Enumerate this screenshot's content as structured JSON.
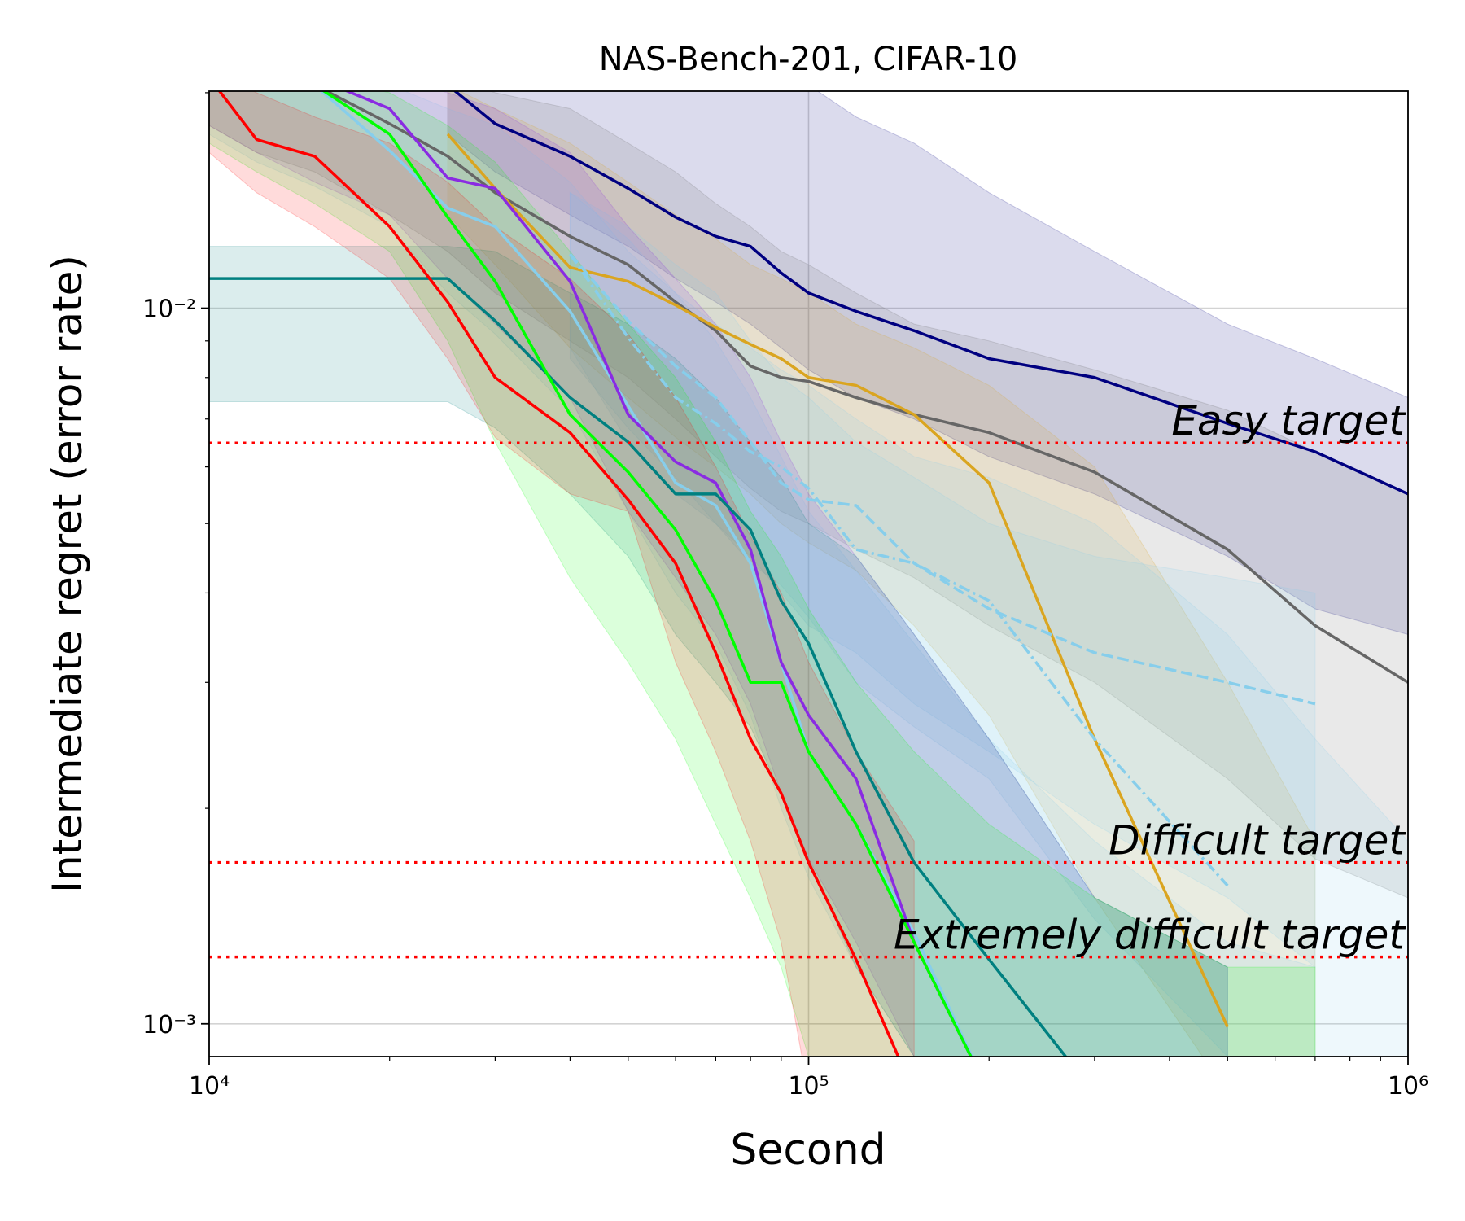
{
  "chart_data": {
    "type": "line",
    "title": "NAS-Bench-201, CIFAR-10",
    "xlabel": "Second",
    "ylabel": "Intermediate regret (error rate)",
    "xscale": "log",
    "yscale": "log",
    "grid": true,
    "xlim": [
      10000,
      1000000
    ],
    "ylim": [
      0.0009,
      0.0201
    ],
    "xticks": [
      {
        "value": 10000,
        "label": "10⁴"
      },
      {
        "value": 100000,
        "label": "10⁵"
      },
      {
        "value": 1000000,
        "label": "10⁶"
      }
    ],
    "yticks": [
      {
        "value": 0.001,
        "label": "10⁻³"
      },
      {
        "value": 0.01,
        "label": "10⁻²"
      }
    ],
    "xminorticks": [
      20000,
      30000,
      40000,
      50000,
      60000,
      70000,
      80000,
      90000,
      200000,
      300000,
      400000,
      500000,
      600000,
      700000,
      800000,
      900000
    ],
    "yminorticks": [
      0.002,
      0.003,
      0.004,
      0.005,
      0.006,
      0.007,
      0.008,
      0.009,
      0.02
    ],
    "hline_color": "#ff0000",
    "hlines": [
      {
        "y": 0.00648,
        "label": "Easy target"
      },
      {
        "y": 0.00168,
        "label": "Difficult target"
      },
      {
        "y": 0.00124,
        "label": "Extremely difficult target"
      }
    ],
    "x": [
      10000,
      12000,
      15000,
      20000,
      25000,
      30000,
      40000,
      50000,
      60000,
      70000,
      80000,
      90000,
      100000,
      120000,
      150000,
      200000,
      300000,
      500000,
      700000,
      1000000
    ],
    "series": [
      {
        "color": "#000080",
        "linestyle": "-",
        "values": [
          null,
          null,
          null,
          null,
          0.0205,
          0.0181,
          0.0163,
          0.0147,
          0.0134,
          0.0126,
          0.0122,
          0.0112,
          0.0105,
          0.0099,
          0.0093,
          0.0085,
          0.008,
          0.0069,
          0.0063,
          0.0055
        ],
        "upper": [
          null,
          null,
          null,
          null,
          0.0205,
          0.0205,
          0.0205,
          0.0205,
          0.0205,
          0.0205,
          0.0205,
          0.0205,
          0.0205,
          0.0185,
          0.017,
          0.0145,
          0.012,
          0.0095,
          0.0085,
          0.0075
        ],
        "lower": [
          null,
          null,
          null,
          null,
          0.0175,
          0.0155,
          0.0135,
          0.0122,
          0.011,
          0.0102,
          0.0095,
          0.0088,
          0.0082,
          0.0075,
          0.007,
          0.0062,
          0.0055,
          0.0045,
          0.0038,
          0.0035
        ]
      },
      {
        "color": "#666666",
        "linestyle": "-",
        "values": [
          0.023,
          0.021,
          0.0205,
          0.0181,
          0.0163,
          0.0145,
          0.0126,
          0.0115,
          0.0102,
          0.0093,
          0.0083,
          0.008,
          0.0079,
          0.0075,
          0.0071,
          0.0067,
          0.0059,
          0.0046,
          0.0036,
          0.003
        ],
        "upper": [
          0.022,
          0.022,
          0.022,
          0.0215,
          0.021,
          0.02,
          0.019,
          0.017,
          0.0155,
          0.014,
          0.013,
          0.012,
          0.0115,
          0.0105,
          0.0095,
          0.009,
          0.0082,
          0.0072,
          0.0063,
          0.0055
        ],
        "lower": [
          0.018,
          0.0165,
          0.0155,
          0.0135,
          0.012,
          0.0105,
          0.009,
          0.008,
          0.007,
          0.0062,
          0.0056,
          0.0052,
          0.005,
          0.0046,
          0.0042,
          0.0036,
          0.003,
          0.0022,
          0.0017,
          0.0015
        ]
      },
      {
        "color": "#daa520",
        "linestyle": "-",
        "values": [
          null,
          null,
          null,
          null,
          0.0175,
          0.0147,
          0.0114,
          0.0109,
          0.0101,
          0.0094,
          0.0089,
          0.0085,
          0.008,
          0.0078,
          0.0071,
          0.0057,
          0.0025,
          0.00099,
          null,
          null
        ],
        "upper": [
          null,
          null,
          null,
          null,
          0.0205,
          0.019,
          0.017,
          0.015,
          0.0135,
          0.0125,
          0.0115,
          0.011,
          0.0105,
          0.0095,
          0.0088,
          0.0078,
          0.006,
          0.003,
          0.0018,
          null
        ],
        "lower": [
          null,
          null,
          null,
          null,
          0.0135,
          0.0115,
          0.0088,
          0.0075,
          0.0066,
          0.006,
          0.0055,
          0.005,
          0.0047,
          0.0043,
          0.0036,
          0.0027,
          0.0015,
          0.0008,
          0.0008,
          null
        ]
      },
      {
        "color": "#87ceeb",
        "linestyle": "--",
        "values": [
          null,
          null,
          null,
          null,
          null,
          null,
          0.0119,
          0.0096,
          0.0083,
          0.0075,
          0.0065,
          0.0057,
          0.0054,
          0.0053,
          0.0044,
          0.0038,
          0.0033,
          0.003,
          0.0028,
          null
        ],
        "upper": [
          null,
          null,
          null,
          null,
          null,
          null,
          0.0145,
          0.013,
          0.0115,
          0.0105,
          0.009,
          0.008,
          0.0075,
          0.0065,
          0.0058,
          0.005,
          0.0045,
          0.0042,
          0.004,
          null
        ],
        "lower": [
          null,
          null,
          null,
          null,
          null,
          null,
          0.0085,
          0.0068,
          0.0058,
          0.005,
          0.0045,
          0.004,
          0.0036,
          0.0033,
          0.0028,
          0.0024,
          0.0019,
          0.0015,
          0.0012,
          null
        ]
      },
      {
        "color": "#87ceeb",
        "linestyle": "-.",
        "values": [
          null,
          null,
          null,
          null,
          null,
          null,
          0.0119,
          0.0091,
          0.0075,
          0.0069,
          0.0063,
          0.006,
          0.0056,
          0.0046,
          0.0044,
          0.0039,
          0.0025,
          0.00156,
          null,
          null
        ],
        "upper": [
          null,
          null,
          null,
          null,
          null,
          null,
          0.0145,
          0.0125,
          0.0105,
          0.0095,
          0.0088,
          0.0082,
          0.0078,
          0.007,
          0.0062,
          0.0058,
          0.005,
          0.0035,
          0.0025,
          0.0018
        ],
        "lower": [
          null,
          null,
          null,
          null,
          null,
          null,
          0.0088,
          0.0065,
          0.0055,
          0.005,
          0.0044,
          0.0041,
          0.0037,
          0.003,
          0.0026,
          0.0022,
          0.0014,
          0.0009,
          0.0008,
          0.0008
        ]
      },
      {
        "color": "#87ceeb",
        "linestyle": "-",
        "values": [
          0.022,
          0.021,
          0.0205,
          0.0166,
          0.0138,
          0.013,
          0.0099,
          0.0073,
          0.0057,
          0.0053,
          0.0044,
          0.0032,
          0.0024,
          0.0019,
          0.00134,
          0.0008,
          null,
          null,
          null,
          null
        ],
        "upper": [
          0.0225,
          0.022,
          0.0215,
          0.0205,
          0.019,
          0.018,
          0.015,
          0.012,
          0.0105,
          0.009,
          0.0075,
          0.0062,
          0.0052,
          0.0043,
          0.0034,
          0.0025,
          0.0018,
          0.0013,
          0.0012,
          null
        ],
        "lower": [
          0.0175,
          0.016,
          0.0148,
          0.013,
          0.0105,
          0.0092,
          0.0072,
          0.0052,
          0.004,
          0.0034,
          0.0027,
          0.002,
          0.0016,
          0.0012,
          0.0009,
          0.0008,
          0.0008,
          0.0008,
          0.0008,
          null
        ]
      },
      {
        "color": "#8a2be2",
        "linestyle": "-",
        "values": [
          0.023,
          0.022,
          0.021,
          0.019,
          0.0152,
          0.0147,
          0.0109,
          0.0071,
          0.0061,
          0.0057,
          0.0046,
          0.0032,
          0.0027,
          0.0022,
          0.0013,
          0.0008,
          null,
          null,
          null,
          null
        ],
        "upper": [
          0.0225,
          0.0222,
          0.022,
          0.021,
          0.02,
          0.019,
          0.0165,
          0.013,
          0.011,
          0.0095,
          0.008,
          0.0065,
          0.0055,
          0.0045,
          0.0035,
          0.0025,
          0.0015,
          0.0012,
          null,
          null
        ],
        "lower": [
          0.018,
          0.0165,
          0.015,
          0.0135,
          0.011,
          0.0095,
          0.0075,
          0.0052,
          0.0042,
          0.0035,
          0.0028,
          0.0021,
          0.0017,
          0.0013,
          0.0009,
          0.0008,
          0.0008,
          0.0008,
          null,
          null
        ]
      },
      {
        "color": "#008080",
        "linestyle": "-",
        "values": [
          0.011,
          0.011,
          0.011,
          0.011,
          0.011,
          0.0096,
          0.0075,
          0.0065,
          0.0055,
          0.0055,
          0.0049,
          0.0039,
          0.0034,
          0.0024,
          0.00168,
          0.00123,
          0.0008,
          null,
          null,
          null
        ],
        "upper": [
          0.0122,
          0.0122,
          0.0122,
          0.0122,
          0.0122,
          0.012,
          0.0105,
          0.0095,
          0.0085,
          0.0075,
          0.0065,
          0.0058,
          0.005,
          0.0045,
          0.0035,
          0.0025,
          0.0015,
          0.0012,
          null,
          null
        ],
        "lower": [
          0.0074,
          0.0074,
          0.0074,
          0.0074,
          0.0074,
          0.0068,
          0.0055,
          0.0045,
          0.0035,
          0.003,
          0.0026,
          0.0021,
          0.0017,
          0.0012,
          0.0009,
          0.0008,
          0.0008,
          0.0008,
          null,
          null
        ]
      },
      {
        "color": "#00ff00",
        "linestyle": "-",
        "values": [
          0.023,
          0.021,
          0.0205,
          0.0175,
          0.0134,
          0.0109,
          0.0071,
          0.0059,
          0.0049,
          0.0039,
          0.003,
          0.003,
          0.0024,
          0.0019,
          0.0013,
          0.0008,
          null,
          null,
          null,
          null
        ],
        "upper": [
          0.0225,
          0.022,
          0.021,
          0.02,
          0.018,
          0.016,
          0.012,
          0.0095,
          0.008,
          0.0065,
          0.0052,
          0.0045,
          0.0038,
          0.003,
          0.0024,
          0.0019,
          0.0015,
          0.0012,
          0.0012,
          null
        ],
        "lower": [
          0.017,
          0.0155,
          0.014,
          0.012,
          0.009,
          0.0065,
          0.0042,
          0.0032,
          0.0025,
          0.0019,
          0.0015,
          0.0012,
          0.0009,
          0.0008,
          0.0008,
          0.0008,
          0.0008,
          0.0008,
          0.0008,
          null
        ]
      },
      {
        "color": "#ff0000",
        "linestyle": "-",
        "values": [
          0.021,
          0.0172,
          0.0163,
          0.013,
          0.0102,
          0.008,
          0.0067,
          0.0054,
          0.0044,
          0.0033,
          0.0025,
          0.0021,
          0.00168,
          0.00123,
          0.0008,
          null,
          null,
          null,
          null,
          null
        ],
        "upper": [
          0.0215,
          0.02,
          0.0185,
          0.017,
          0.015,
          0.013,
          0.011,
          0.0092,
          0.0075,
          0.006,
          0.0048,
          0.004,
          0.0032,
          0.0024,
          0.0018,
          null,
          null,
          null,
          null,
          null
        ],
        "lower": [
          0.0165,
          0.0145,
          0.013,
          0.011,
          0.0085,
          0.0066,
          0.0055,
          0.0052,
          0.0032,
          0.0024,
          0.0018,
          0.0013,
          0.0008,
          0.0008,
          0.0008,
          null,
          null,
          null,
          null,
          null
        ]
      }
    ]
  }
}
